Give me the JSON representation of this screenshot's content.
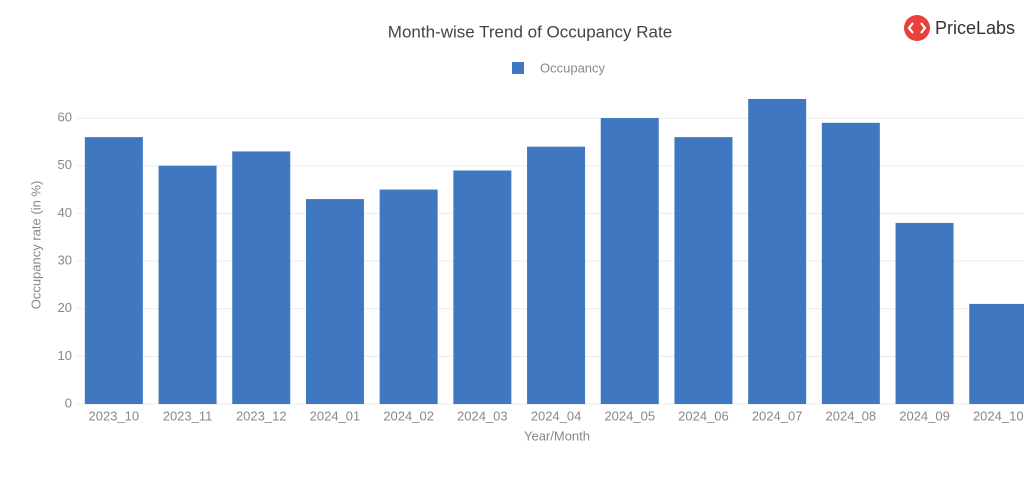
{
  "logo_text": "PriceLabs",
  "chart_data": {
    "type": "bar",
    "title": "Month-wise Trend of Occupancy Rate",
    "x_label": "Year/Month",
    "y_label": "Occupancy rate (in %)",
    "categories": [
      "2023_10",
      "2023_11",
      "2023_12",
      "2024_01",
      "2024_02",
      "2024_03",
      "2024_04",
      "2024_05",
      "2024_06",
      "2024_07",
      "2024_08",
      "2024_09",
      "2024_10"
    ],
    "series": [
      {
        "name": "Occupancy",
        "color": "#3f78c1",
        "values": [
          56,
          50,
          53,
          43,
          45,
          49,
          54,
          60,
          56,
          64,
          59,
          38,
          21
        ]
      }
    ],
    "ylim": [
      0,
      64
    ],
    "yticks": [
      0,
      10,
      20,
      30,
      40,
      50,
      60
    ],
    "grid": true,
    "legend": "top"
  }
}
